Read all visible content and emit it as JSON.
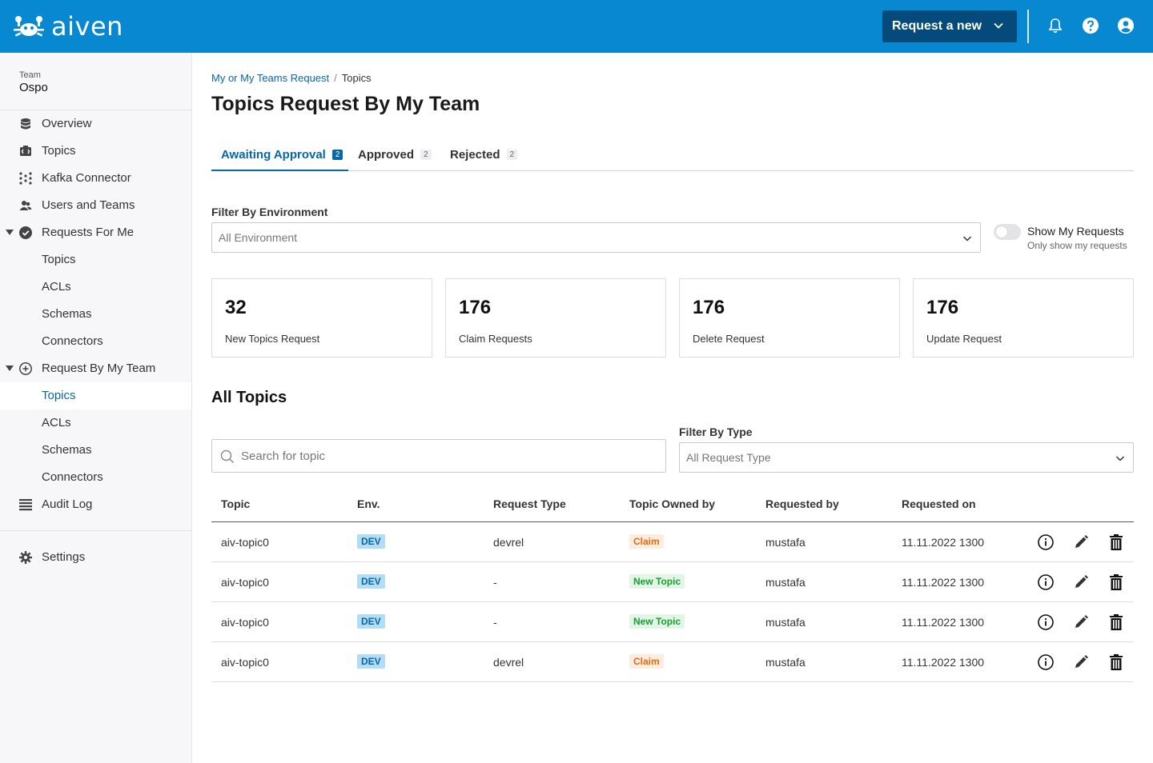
{
  "header": {
    "brand": "aiven",
    "request_button_label": "Request a new"
  },
  "sidebar": {
    "team_label": "Team",
    "team_name": "Ospo",
    "items": [
      {
        "label": "Overview"
      },
      {
        "label": "Topics"
      },
      {
        "label": "Kafka Connector"
      },
      {
        "label": "Users and Teams"
      },
      {
        "label": "Requests For Me"
      },
      {
        "label": "Topics"
      },
      {
        "label": "ACLs"
      },
      {
        "label": "Schemas"
      },
      {
        "label": "Connectors"
      },
      {
        "label": "Request By My Team"
      },
      {
        "label": "Topics"
      },
      {
        "label": "ACLs"
      },
      {
        "label": "Schemas"
      },
      {
        "label": "Connectors"
      },
      {
        "label": "Audit Log"
      },
      {
        "label": "Settings"
      }
    ]
  },
  "breadcrumb": {
    "parent": "My or My Teams Request",
    "separator": "/",
    "current": "Topics"
  },
  "page_title": "Topics Request By My Team",
  "tabs": [
    {
      "label": "Awaiting Approval",
      "count": "2"
    },
    {
      "label": "Approved",
      "count": "2"
    },
    {
      "label": "Rejected",
      "count": "2"
    }
  ],
  "env_filter": {
    "label": "Filter By Environment",
    "value": "All Environment"
  },
  "toggle": {
    "label": "Show My Requests",
    "sublabel": "Only show my requests"
  },
  "stats": [
    {
      "value": "32",
      "caption": "New Topics Request"
    },
    {
      "value": "176",
      "caption": "Claim Requests"
    },
    {
      "value": "176",
      "caption": "Delete Request"
    },
    {
      "value": "176",
      "caption": "Update Request"
    }
  ],
  "section_title": "All Topics",
  "search": {
    "placeholder": "Search for topic"
  },
  "type_filter": {
    "label": "Filter By Type",
    "value": "All Request Type"
  },
  "table": {
    "headers": [
      "Topic",
      "Env.",
      "Request Type",
      "Topic Owned by",
      "Requested by",
      "Requested on"
    ],
    "rows": [
      {
        "topic": "aiv-topic0",
        "env": "DEV",
        "request_type": "devrel",
        "owned_by": "Claim",
        "requested_by": "mustafa",
        "requested_on": "11.11.2022 1300"
      },
      {
        "topic": "aiv-topic0",
        "env": "DEV",
        "request_type": "-",
        "owned_by": "New Topic",
        "requested_by": "mustafa",
        "requested_on": "11.11.2022 1300"
      },
      {
        "topic": "aiv-topic0",
        "env": "DEV",
        "request_type": "-",
        "owned_by": "New Topic",
        "requested_by": "mustafa",
        "requested_on": "11.11.2022 1300"
      },
      {
        "topic": "aiv-topic0",
        "env": "DEV",
        "request_type": "devrel",
        "owned_by": "Claim",
        "requested_by": "mustafa",
        "requested_on": "11.11.2022 1300"
      }
    ]
  },
  "colors": {
    "brand_blue": "#0788d1",
    "button_dark": "#044a7a",
    "link_blue": "#0766a9",
    "claim_orange": "#e86a0b",
    "new_topic_green": "#15a030"
  }
}
